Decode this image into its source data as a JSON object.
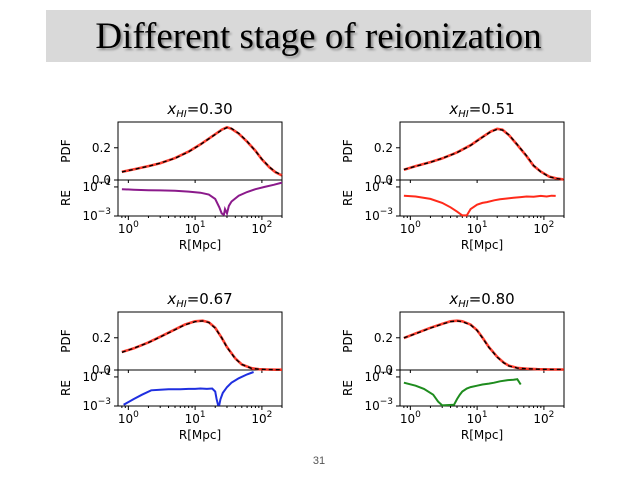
{
  "slide": {
    "title": "Different stage of reionization",
    "page_number": "31"
  },
  "colors": {
    "model": "#000000",
    "simulation": "#ff2a1a",
    "background": "#ffffff"
  },
  "chart_data": [
    {
      "type": "line",
      "title": "x_HI=0.30",
      "title_var": "x",
      "title_sub": "HI",
      "title_val": "=0.30",
      "xlabel": "R[Mpc]",
      "xscale": "log",
      "xlim": [
        0.7,
        200
      ],
      "xticks": [
        "10^0",
        "10^1",
        "10^2"
      ],
      "top": {
        "ylabel": "PDF",
        "ylim": [
          0,
          0.36
        ],
        "yticks": [
          "0.0",
          "0.2"
        ],
        "x": [
          0.8,
          1.2,
          2,
          3,
          5,
          8,
          12,
          18,
          25,
          30,
          35,
          45,
          60,
          80,
          100,
          130,
          160,
          200
        ],
        "model": [
          0.05,
          0.065,
          0.085,
          0.105,
          0.135,
          0.175,
          0.22,
          0.27,
          0.31,
          0.325,
          0.32,
          0.29,
          0.24,
          0.18,
          0.13,
          0.08,
          0.05,
          0.03
        ],
        "simulation": [
          0.051,
          0.066,
          0.086,
          0.104,
          0.136,
          0.176,
          0.221,
          0.271,
          0.312,
          0.327,
          0.318,
          0.288,
          0.238,
          0.182,
          0.128,
          0.078,
          0.048,
          0.028
        ]
      },
      "bottom": {
        "ylabel": "RE",
        "yscale": "log",
        "ylim": [
          0.001,
          0.3
        ],
        "yticks": [
          "10^-1",
          "10^-3"
        ],
        "series": [
          {
            "color": "#8b1a8b",
            "x": [
              0.8,
              1.2,
              2,
              3,
              5,
              8,
              12,
              16,
              20,
              23,
              25,
              27,
              28,
              30,
              32,
              35,
              45,
              60,
              80,
              110,
              150,
              200
            ],
            "y": [
              0.07,
              0.065,
              0.06,
              0.058,
              0.055,
              0.048,
              0.04,
              0.03,
              0.015,
              0.004,
              0.0015,
              0.0012,
              0.003,
              0.0015,
              0.005,
              0.01,
              0.025,
              0.045,
              0.07,
              0.1,
              0.14,
              0.2
            ]
          }
        ]
      }
    },
    {
      "type": "line",
      "title": "x_HI=0.51",
      "title_var": "x",
      "title_sub": "HI",
      "title_val": "=0.51",
      "xlabel": "R[Mpc]",
      "xscale": "log",
      "xlim": [
        0.7,
        200
      ],
      "xticks": [
        "10^0",
        "10^1",
        "10^2"
      ],
      "top": {
        "ylabel": "PDF",
        "ylim": [
          0,
          0.36
        ],
        "yticks": [
          "0.0",
          "0.2"
        ],
        "x": [
          0.8,
          1.2,
          2,
          3,
          5,
          8,
          12,
          16,
          20,
          24,
          30,
          40,
          55,
          70,
          90,
          120,
          160,
          200
        ],
        "model": [
          0.065,
          0.085,
          0.11,
          0.135,
          0.17,
          0.215,
          0.265,
          0.3,
          0.315,
          0.31,
          0.28,
          0.22,
          0.15,
          0.09,
          0.05,
          0.02,
          0.008,
          0.003
        ],
        "simulation": [
          0.064,
          0.086,
          0.111,
          0.134,
          0.171,
          0.216,
          0.266,
          0.301,
          0.317,
          0.312,
          0.278,
          0.218,
          0.148,
          0.088,
          0.052,
          0.021,
          0.009,
          0.003
        ]
      },
      "bottom": {
        "ylabel": "RE",
        "yscale": "log",
        "ylim": [
          0.001,
          0.3
        ],
        "yticks": [
          "10^-1",
          "10^-3"
        ],
        "series": [
          {
            "color": "#ff2a1a",
            "x": [
              0.8,
              1.2,
              2,
              3,
              4,
              5,
              6,
              7,
              8,
              10,
              12,
              14,
              18,
              22,
              28,
              35,
              45,
              55,
              70,
              90,
              110,
              130,
              150
            ],
            "y": [
              0.025,
              0.022,
              0.015,
              0.008,
              0.004,
              0.002,
              0.0011,
              0.0011,
              0.003,
              0.006,
              0.008,
              0.009,
              0.012,
              0.014,
              0.016,
              0.018,
              0.02,
              0.022,
              0.021,
              0.024,
              0.022,
              0.025,
              0.024
            ]
          }
        ]
      }
    },
    {
      "type": "line",
      "title": "x_HI=0.67",
      "title_var": "x",
      "title_sub": "HI",
      "title_val": "=0.67",
      "xlabel": "R[Mpc]",
      "xscale": "log",
      "xlim": [
        0.7,
        200
      ],
      "xticks": [
        "10^0",
        "10^1",
        "10^2"
      ],
      "top": {
        "ylabel": "PDF",
        "ylim": [
          0,
          0.36
        ],
        "yticks": [
          "0.0",
          "0.2"
        ],
        "x": [
          0.8,
          1.2,
          2,
          3,
          5,
          7,
          10,
          13,
          16,
          20,
          25,
          30,
          40,
          50,
          70,
          90,
          120,
          160,
          200
        ],
        "model": [
          0.11,
          0.135,
          0.17,
          0.205,
          0.25,
          0.28,
          0.3,
          0.305,
          0.295,
          0.26,
          0.2,
          0.14,
          0.07,
          0.035,
          0.01,
          0.005,
          0.003,
          0.002,
          0.002
        ],
        "simulation": [
          0.112,
          0.134,
          0.171,
          0.206,
          0.252,
          0.282,
          0.302,
          0.306,
          0.296,
          0.262,
          0.2,
          0.142,
          0.072,
          0.034,
          0.011,
          0.005,
          0.003,
          0.002,
          0.002
        ]
      },
      "bottom": {
        "ylabel": "RE",
        "yscale": "log",
        "ylim": [
          0.001,
          0.3
        ],
        "yticks": [
          "10^-1",
          "10^-3"
        ],
        "series": [
          {
            "color": "#1f2fe0",
            "x": [
              0.85,
              1.2,
              1.6,
              2.2,
              3,
              4,
              6,
              8,
              10,
              12,
              15,
              18,
              20,
              21,
              22,
              23,
              24,
              26,
              30,
              35,
              45,
              60,
              75
            ],
            "y": [
              0.0012,
              0.003,
              0.006,
              0.012,
              0.013,
              0.014,
              0.014,
              0.015,
              0.015,
              0.016,
              0.015,
              0.016,
              0.01,
              0.003,
              0.0012,
              0.0012,
              0.003,
              0.008,
              0.02,
              0.04,
              0.08,
              0.15,
              0.22
            ]
          }
        ]
      }
    },
    {
      "type": "line",
      "title": "x_HI=0.80",
      "title_var": "x",
      "title_sub": "HI",
      "title_val": "=0.80",
      "xlabel": "R[Mpc]",
      "xscale": "log",
      "xlim": [
        0.7,
        200
      ],
      "xticks": [
        "10^0",
        "10^1",
        "10^2"
      ],
      "top": {
        "ylabel": "PDF",
        "ylim": [
          0,
          0.36
        ],
        "yticks": [
          "0.0",
          "0.2"
        ],
        "x": [
          0.8,
          1.2,
          2,
          3,
          4,
          5,
          6,
          8,
          10,
          12,
          15,
          20,
          25,
          30,
          40,
          55,
          80,
          120,
          200
        ],
        "model": [
          0.2,
          0.225,
          0.26,
          0.285,
          0.3,
          0.305,
          0.3,
          0.28,
          0.245,
          0.2,
          0.14,
          0.08,
          0.045,
          0.025,
          0.012,
          0.008,
          0.005,
          0.004,
          0.003
        ],
        "simulation": [
          0.198,
          0.227,
          0.262,
          0.286,
          0.302,
          0.306,
          0.302,
          0.282,
          0.247,
          0.202,
          0.142,
          0.082,
          0.046,
          0.026,
          0.013,
          0.008,
          0.005,
          0.004,
          0.003
        ]
      },
      "bottom": {
        "ylabel": "RE",
        "yscale": "log",
        "ylim": [
          0.001,
          0.3
        ],
        "yticks": [
          "10^-1",
          "10^-3"
        ],
        "series": [
          {
            "color": "#1e8c1e",
            "x": [
              0.8,
              1.2,
              1.6,
              2.2,
              2.6,
              3,
              4.5,
              5,
              5.5,
              6,
              7,
              8,
              10,
              12,
              15,
              18,
              22,
              28,
              35,
              40,
              45
            ],
            "y": [
              0.04,
              0.025,
              0.015,
              0.006,
              0.002,
              0.0011,
              0.0012,
              0.003,
              0.006,
              0.01,
              0.016,
              0.02,
              0.025,
              0.03,
              0.035,
              0.04,
              0.05,
              0.06,
              0.065,
              0.07,
              0.03
            ]
          }
        ]
      }
    }
  ]
}
